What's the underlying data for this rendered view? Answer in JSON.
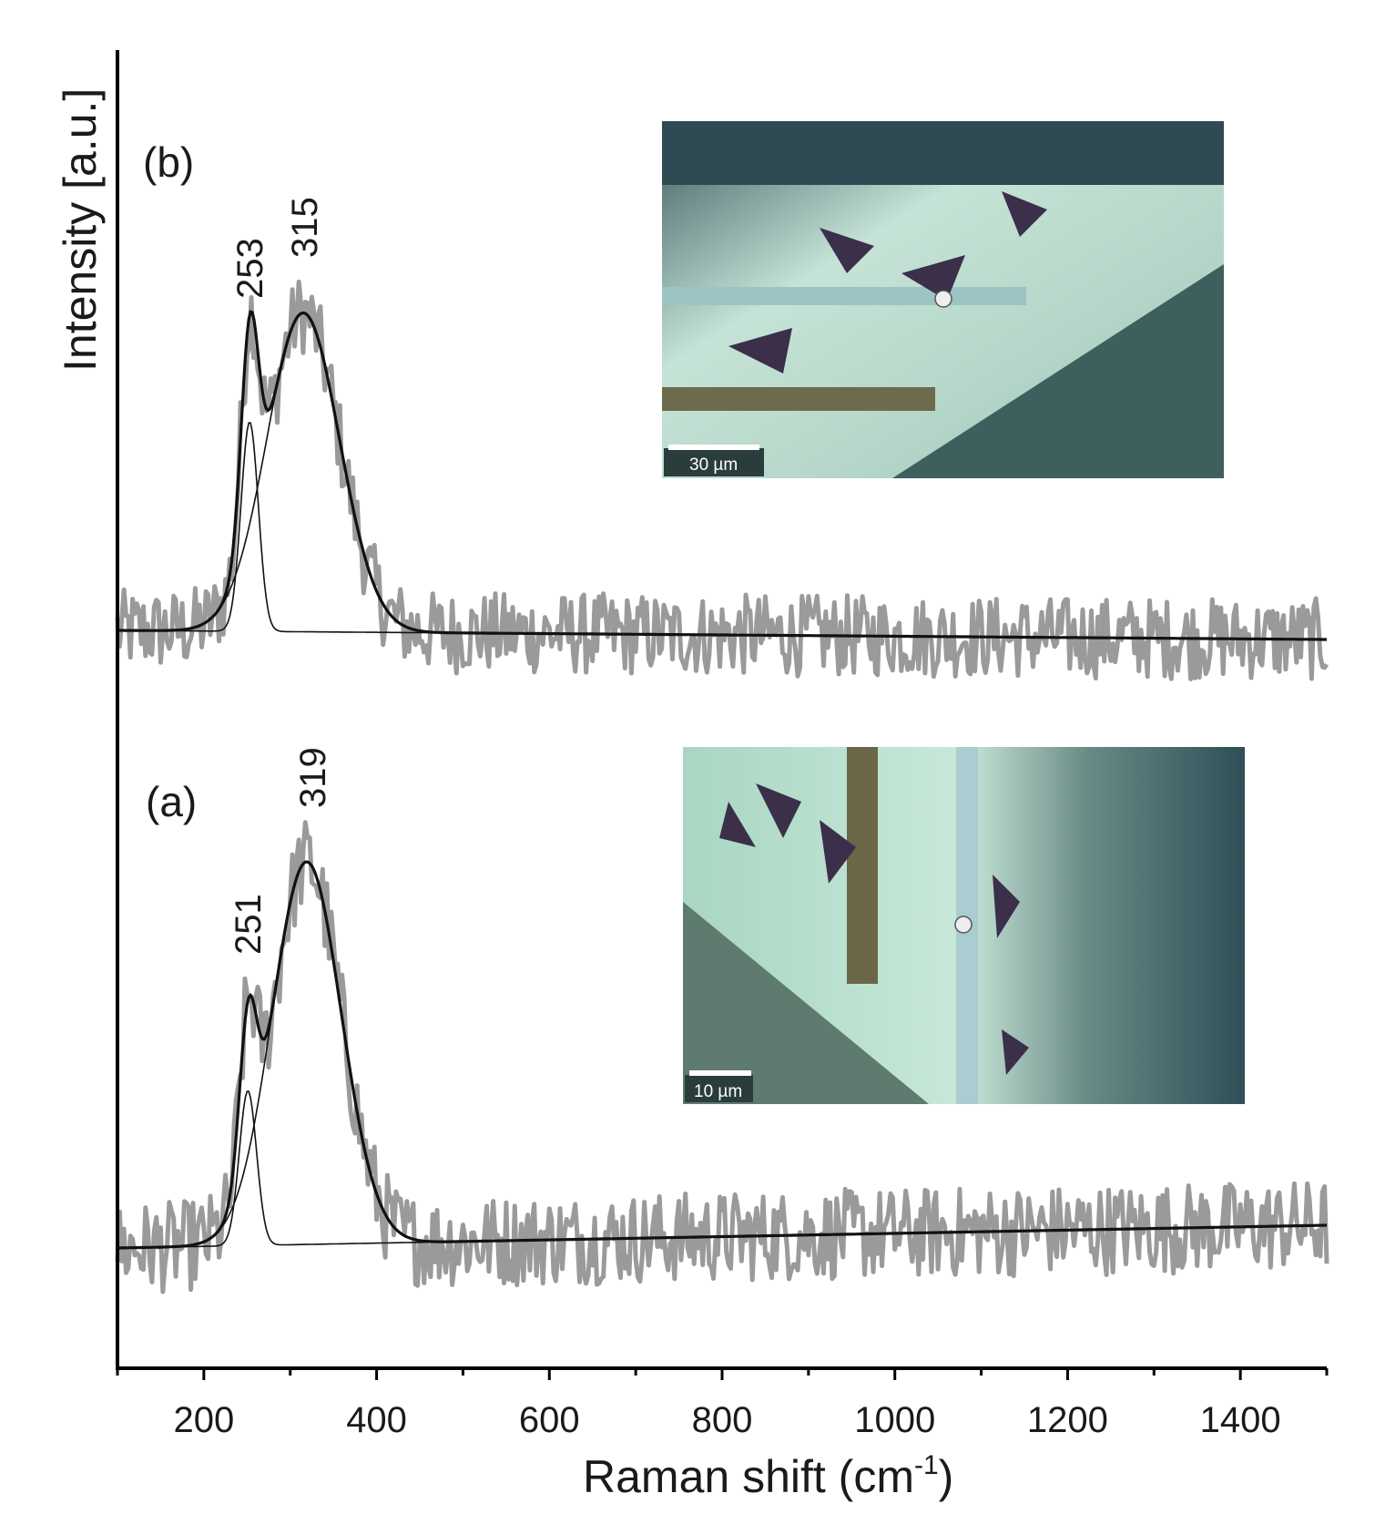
{
  "chart_data": {
    "type": "line",
    "xlabel": "Raman shift (cm",
    "xlabel_sup": "-1",
    "xlabel_close": ")",
    "ylabel": "Intensity [a.u.]",
    "xlim": [
      100,
      1500
    ],
    "x_ticks": [
      200,
      400,
      600,
      800,
      1000,
      1200,
      1400
    ],
    "y_ticks_shown": false,
    "grid": false,
    "panels": [
      {
        "id": "b",
        "label": "(b)",
        "peaks": [
          {
            "position": 253,
            "label": "253",
            "amplitude": 0.23,
            "width": 10
          },
          {
            "position": 315,
            "label": "315",
            "amplitude": 0.35,
            "width": 42
          }
        ],
        "baseline_start": 0.0,
        "baseline_end": -0.01,
        "noise_amplitude": 0.045,
        "inset": {
          "scale_bar": "30 µm"
        }
      },
      {
        "id": "a",
        "label": "(a)",
        "peaks": [
          {
            "position": 251,
            "label": "251",
            "amplitude": 0.17,
            "width": 10
          },
          {
            "position": 319,
            "label": "319",
            "amplitude": 0.42,
            "width": 40
          }
        ],
        "baseline_start": 0.0,
        "baseline_end": 0.025,
        "noise_amplitude": 0.05,
        "inset": {
          "scale_bar": "10 µm"
        }
      }
    ],
    "series": [
      {
        "name": "",
        "style": "measured spectrum (gray)"
      },
      {
        "name": "",
        "style": "cumulative fit (thick black)"
      },
      {
        "name": "",
        "style": "component peaks (thin black)"
      }
    ]
  },
  "colors": {
    "spectrum": "#9a9a9a",
    "fit": "#111111",
    "axis": "#000000",
    "inset_light": "#bfe0d2",
    "inset_dark": "#2c4a52"
  }
}
